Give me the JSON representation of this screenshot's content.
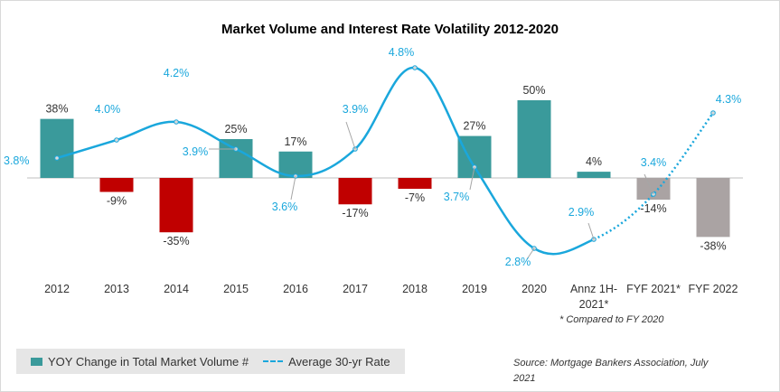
{
  "chart_data": {
    "type": "bar",
    "title": "Market Volume and Interest Rate Volatility 2012-2020",
    "categories": [
      "2012",
      "2013",
      "2014",
      "2015",
      "2016",
      "2017",
      "2018",
      "2019",
      "2020",
      "Annz 1H-2021*",
      "FYF 2021*",
      "FYF 2022"
    ],
    "category_labels": [
      [
        "2012"
      ],
      [
        "2013"
      ],
      [
        "2014"
      ],
      [
        "2015"
      ],
      [
        "2016"
      ],
      [
        "2017"
      ],
      [
        "2018"
      ],
      [
        "2019"
      ],
      [
        "2020"
      ],
      [
        "Annz 1H-",
        "2021*"
      ],
      [
        "FYF 2021*"
      ],
      [
        "FYF 2022"
      ]
    ],
    "series": [
      {
        "name": "YOY Change in Total Market Volume #",
        "type": "bar",
        "values": [
          38,
          -9,
          -35,
          25,
          17,
          -17,
          -7,
          27,
          50,
          4,
          -14,
          -38
        ],
        "labels": [
          "38%",
          "-9%",
          "-35%",
          "25%",
          "17%",
          "-17%",
          "-7%",
          "27%",
          "50%",
          "4%",
          "-14%",
          "-38%"
        ],
        "colors": [
          "#3a9a9b",
          "#c00000",
          "#c00000",
          "#3a9a9b",
          "#3a9a9b",
          "#c00000",
          "#c00000",
          "#3a9a9b",
          "#3a9a9b",
          "#3a9a9b",
          "#aaa3a3",
          "#aaa3a3"
        ]
      },
      {
        "name": "Average 30-yr Rate",
        "type": "line",
        "values": [
          3.8,
          4.0,
          4.2,
          3.9,
          3.6,
          3.9,
          4.8,
          3.7,
          2.8,
          2.9,
          3.4,
          4.3
        ],
        "labels": [
          "3.8%",
          "4.0%",
          "4.2%",
          "3.9%",
          "3.6%",
          "3.9%",
          "4.8%",
          "3.7%",
          "2.8%",
          "2.9%",
          "3.4%",
          "4.3%"
        ],
        "color": "#1aa7dc",
        "dotted_from_index": 9
      }
    ],
    "legend_position": "bottom-left",
    "grid": false,
    "footnote": "* Compared to FY 2020",
    "source": "Source: Mortgage Bankers Association, July 2021"
  }
}
